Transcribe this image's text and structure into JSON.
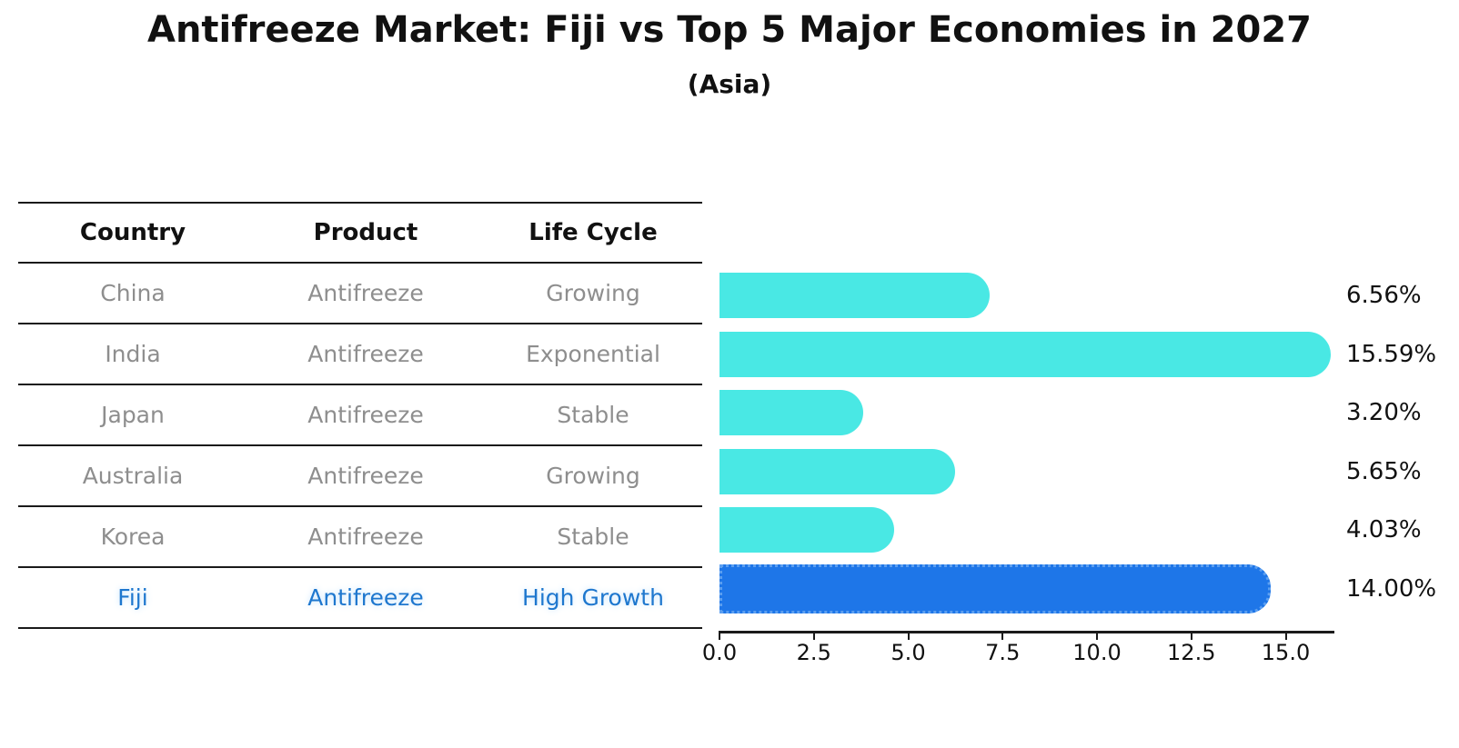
{
  "header": {
    "title": "Antifreeze Market: Fiji vs Top 5 Major Economies in 2027",
    "subtitle": "(Asia)"
  },
  "table": {
    "columns": [
      "Country",
      "Product",
      "Life Cycle"
    ],
    "rows": [
      {
        "country": "China",
        "product": "Antifreeze",
        "life_cycle": "Growing",
        "highlight": false
      },
      {
        "country": "India",
        "product": "Antifreeze",
        "life_cycle": "Exponential",
        "highlight": false
      },
      {
        "country": "Japan",
        "product": "Antifreeze",
        "life_cycle": "Stable",
        "highlight": false
      },
      {
        "country": "Australia",
        "product": "Antifreeze",
        "life_cycle": "Growing",
        "highlight": false
      },
      {
        "country": "Korea",
        "product": "Antifreeze",
        "life_cycle": "Stable",
        "highlight": false
      },
      {
        "country": "Fiji",
        "product": "Antifreeze",
        "life_cycle": "High Growth",
        "highlight": true
      }
    ]
  },
  "chart_data": {
    "type": "bar",
    "orientation": "horizontal",
    "title": "Antifreeze Market: Fiji vs Top 5 Major Economies in 2027",
    "subtitle": "(Asia)",
    "categories": [
      "China",
      "India",
      "Japan",
      "Australia",
      "Korea",
      "Fiji"
    ],
    "values": [
      6.56,
      15.59,
      3.2,
      5.65,
      4.03,
      14.0
    ],
    "value_labels": [
      "6.56%",
      "15.59%",
      "3.20%",
      "5.65%",
      "4.03%",
      "14.00%"
    ],
    "xlabel": "",
    "ylabel": "",
    "xlim": [
      0.0,
      16.3
    ],
    "x_ticks": [
      0.0,
      2.5,
      5.0,
      7.5,
      10.0,
      12.5,
      15.0
    ],
    "x_tick_labels": [
      "0.0",
      "2.5",
      "5.0",
      "7.5",
      "10.0",
      "12.5",
      "15.0"
    ],
    "grid": false,
    "legend": false,
    "bar_color": "#49e8e4",
    "highlight_color": "#1e76e8",
    "highlight_edge_color": "#5c9ff0",
    "highlight_index": 5
  },
  "colors": {
    "bar": "#49e8e4",
    "highlight_bar": "#1e76e8",
    "highlight_text": "#1e77ce",
    "table_text": "#8e8e8e",
    "line": "#1a1a1a"
  }
}
